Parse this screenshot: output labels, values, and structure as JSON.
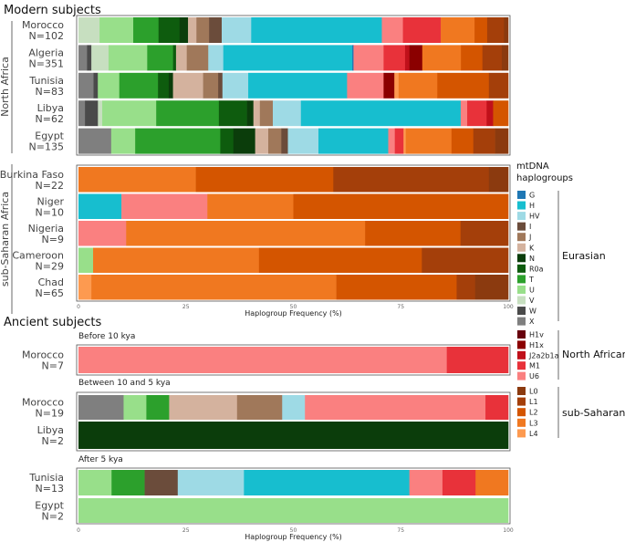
{
  "chart_data": {
    "type": "bar",
    "orientation": "horizontal-stacked",
    "xlabel": "Haplogroup Frequency (%)",
    "xlim": [
      0,
      100
    ],
    "xticks": [
      "0",
      "25",
      "50",
      "75",
      "100"
    ],
    "colors": {
      "G": "#1f78b4",
      "H": "#17becf",
      "HV": "#9edae5",
      "I": "#6b4c3b",
      "J": "#a0785a",
      "K": "#d4b29e",
      "N": "#0b3d0b",
      "R0a": "#0e5c0e",
      "T": "#2ca02c",
      "U": "#98df8a",
      "V": "#c7dfc0",
      "W": "#4a4a4a",
      "X": "#7f7f7f",
      "H1v": "#67000d",
      "H1x": "#8b0000",
      "J2a2b1a": "#c0101a",
      "M1": "#e8323a",
      "U6": "#fa8080",
      "L0": "#8b3a0f",
      "L1": "#a43f0a",
      "L2": "#d45500",
      "L3": "#f07820",
      "L4": "#fd9a50"
    },
    "titles": {
      "modern": "Modern subjects",
      "ancient": "Ancient subjects",
      "north_africa": "North Africa",
      "sub_saharan": "sub-Saharan Africa"
    },
    "modern": [
      {
        "region": "north_africa",
        "name": "Morocco",
        "n": "N=102",
        "segments": [
          [
            "V",
            5
          ],
          [
            "U",
            8
          ],
          [
            "T",
            6
          ],
          [
            "R0a",
            5
          ],
          [
            "N",
            2
          ],
          [
            "K",
            2
          ],
          [
            "J",
            3
          ],
          [
            "I",
            3
          ],
          [
            "HV",
            7
          ],
          [
            "H",
            31
          ],
          [
            "U6",
            5
          ],
          [
            "M1",
            9
          ],
          [
            "L3",
            8
          ],
          [
            "L2",
            3
          ],
          [
            "L1",
            4
          ],
          [
            "L0",
            1
          ]
        ]
      },
      {
        "region": "north_africa",
        "name": "Algeria",
        "n": "N=351",
        "segments": [
          [
            "X",
            2
          ],
          [
            "W",
            1
          ],
          [
            "V",
            4
          ],
          [
            "U",
            9
          ],
          [
            "T",
            6
          ],
          [
            "R0a",
            0.7
          ],
          [
            "K",
            2.5
          ],
          [
            "J",
            5
          ],
          [
            "HV",
            3.5
          ],
          [
            "H",
            30
          ],
          [
            "G",
            0.3
          ],
          [
            "U6",
            7
          ],
          [
            "M1",
            5
          ],
          [
            "J2a2b1a",
            1
          ],
          [
            "H1x",
            3
          ],
          [
            "L3",
            9
          ],
          [
            "L2",
            5
          ],
          [
            "L1",
            4.5
          ],
          [
            "L0",
            1.5
          ]
        ]
      },
      {
        "region": "north_africa",
        "name": "Tunisia",
        "n": "N=83",
        "segments": [
          [
            "X",
            3.5
          ],
          [
            "W",
            1
          ],
          [
            "U",
            5
          ],
          [
            "T",
            9
          ],
          [
            "R0a",
            2.5
          ],
          [
            "N",
            1
          ],
          [
            "K",
            7
          ],
          [
            "J",
            3.5
          ],
          [
            "I",
            1
          ],
          [
            "HV",
            6
          ],
          [
            "H",
            23
          ],
          [
            "U6",
            8.5
          ],
          [
            "H1x",
            2.5
          ],
          [
            "L4",
            1
          ],
          [
            "L3",
            9
          ],
          [
            "L2",
            12
          ],
          [
            "L1",
            4.5
          ]
        ]
      },
      {
        "region": "north_africa",
        "name": "Libya",
        "n": "N=62",
        "segments": [
          [
            "X",
            1.5
          ],
          [
            "W",
            3
          ],
          [
            "V",
            1
          ],
          [
            "U",
            12.5
          ],
          [
            "T",
            14.5
          ],
          [
            "R0a",
            6.5
          ],
          [
            "N",
            1.5
          ],
          [
            "K",
            1.5
          ],
          [
            "J",
            3
          ],
          [
            "HV",
            6.5
          ],
          [
            "H",
            37
          ],
          [
            "U6",
            1.5
          ],
          [
            "M1",
            4.5
          ],
          [
            "J2a2b1a",
            1.5
          ],
          [
            "L2",
            3.5
          ]
        ]
      },
      {
        "region": "north_africa",
        "name": "Egypt",
        "n": "N=135",
        "segments": [
          [
            "X",
            7.5
          ],
          [
            "U",
            5.5
          ],
          [
            "T",
            19.5
          ],
          [
            "R0a",
            3
          ],
          [
            "N",
            5
          ],
          [
            "K",
            3
          ],
          [
            "J",
            3
          ],
          [
            "I",
            1.5
          ],
          [
            "HV",
            7
          ],
          [
            "H",
            16
          ],
          [
            "U6",
            1.5
          ],
          [
            "M1",
            2
          ],
          [
            "L4",
            0.5
          ],
          [
            "L3",
            10.5
          ],
          [
            "L2",
            5
          ],
          [
            "L1",
            5
          ],
          [
            "L0",
            3
          ]
        ]
      },
      {
        "region": "sub_saharan",
        "name": "Burkina Faso",
        "n": "N=22",
        "segments": [
          [
            "L3",
            27.3
          ],
          [
            "L2",
            32
          ],
          [
            "L1",
            36.2
          ],
          [
            "L0",
            4.5
          ]
        ]
      },
      {
        "region": "sub_saharan",
        "name": "Niger",
        "n": "N=10",
        "segments": [
          [
            "H",
            10
          ],
          [
            "U6",
            20
          ],
          [
            "L3",
            20
          ],
          [
            "L2",
            50
          ]
        ]
      },
      {
        "region": "sub_saharan",
        "name": "Nigeria",
        "n": "N=9",
        "segments": [
          [
            "U6",
            11.1
          ],
          [
            "L3",
            55.6
          ],
          [
            "L2",
            22.2
          ],
          [
            "L1",
            11.1
          ]
        ]
      },
      {
        "region": "sub_saharan",
        "name": "Cameroon",
        "n": "N=29",
        "segments": [
          [
            "U",
            3.4
          ],
          [
            "L3",
            38.6
          ],
          [
            "L2",
            37.9
          ],
          [
            "L1",
            20.1
          ]
        ]
      },
      {
        "region": "sub_saharan",
        "name": "Chad",
        "n": "N=65",
        "segments": [
          [
            "L4",
            3
          ],
          [
            "L3",
            57
          ],
          [
            "L2",
            28
          ],
          [
            "L1",
            4.3
          ],
          [
            "L0",
            7.7
          ]
        ]
      }
    ],
    "ancient": [
      {
        "period": "Before 10 kya",
        "samples": [
          {
            "name": "Morocco",
            "n": "N=7",
            "segments": [
              [
                "U6",
                85.7
              ],
              [
                "M1",
                14.3
              ]
            ]
          }
        ]
      },
      {
        "period": "Between 10 and 5 kya",
        "samples": [
          {
            "name": "Morocco",
            "n": "N=19",
            "segments": [
              [
                "X",
                10.5
              ],
              [
                "U",
                5.3
              ],
              [
                "T",
                5.3
              ],
              [
                "K",
                15.8
              ],
              [
                "J",
                10.5
              ],
              [
                "HV",
                5.3
              ],
              [
                "U6",
                42
              ],
              [
                "M1",
                5.3
              ]
            ]
          },
          {
            "name": "Libya",
            "n": "N=2",
            "segments": [
              [
                "N",
                100
              ]
            ]
          }
        ]
      },
      {
        "period": "After 5 kya",
        "samples": [
          {
            "name": "Tunisia",
            "n": "N=13",
            "segments": [
              [
                "U",
                7.7
              ],
              [
                "T",
                7.7
              ],
              [
                "I",
                7.7
              ],
              [
                "HV",
                15.4
              ],
              [
                "H",
                38.5
              ],
              [
                "U6",
                7.7
              ],
              [
                "M1",
                7.7
              ],
              [
                "L3",
                7.6
              ]
            ]
          },
          {
            "name": "Egypt",
            "n": "N=2",
            "segments": [
              [
                "U",
                100
              ]
            ]
          }
        ]
      }
    ],
    "legend": {
      "title_line1": "mtDNA",
      "title_line2": "haplogroups",
      "groups": [
        {
          "label": "Eurasian",
          "items": [
            "G",
            "H",
            "HV",
            "I",
            "J",
            "K",
            "N",
            "R0a",
            "T",
            "U",
            "V",
            "W",
            "X"
          ]
        },
        {
          "label": "North African",
          "items": [
            "H1v",
            "H1x",
            "J2a2b1a",
            "M1",
            "U6"
          ]
        },
        {
          "label": "sub-Saharan",
          "items": [
            "L0",
            "L1",
            "L2",
            "L3",
            "L4"
          ]
        }
      ]
    }
  }
}
